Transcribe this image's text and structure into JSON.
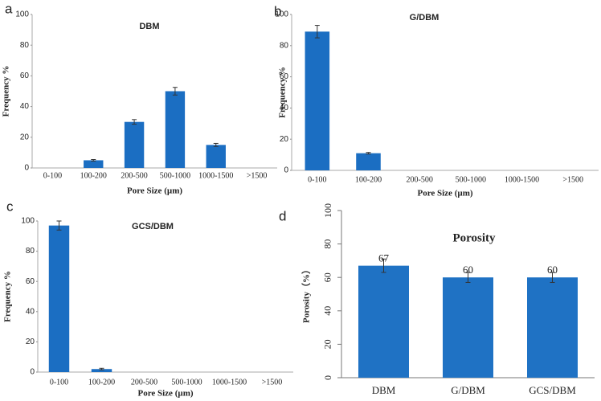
{
  "chart_data": [
    {
      "type": "bar",
      "panel": "a",
      "title": "DBM",
      "x_label": "Pore Size (µm)",
      "y_label": "Frequency %",
      "categories": [
        "0-100",
        "100-200",
        "200-500",
        "500-1000",
        "1000-1500",
        ">1500"
      ],
      "values": [
        0,
        5,
        30,
        50,
        15,
        0
      ],
      "errors": [
        null,
        0.5,
        1.5,
        2.5,
        1,
        null
      ],
      "color": "#1b6ec2",
      "ylim": [
        0,
        100
      ],
      "yticks": [
        0,
        20,
        40,
        60,
        80,
        100
      ]
    },
    {
      "type": "bar",
      "panel": "b",
      "title": "G/DBM",
      "x_label": "Pore Size (µm)",
      "y_label": "Frequency %",
      "categories": [
        "0-100",
        "100-200",
        "200-500",
        "500-1000",
        "1000-1500",
        ">1500"
      ],
      "values": [
        89,
        11,
        0,
        0,
        0,
        0
      ],
      "errors": [
        4,
        0.5,
        null,
        null,
        null,
        null
      ],
      "color": "#1b6ec2",
      "ylim": [
        0,
        100
      ],
      "yticks": [
        0,
        20,
        40,
        60,
        80,
        100
      ]
    },
    {
      "type": "bar",
      "panel": "c",
      "title": "GCS/DBM",
      "x_label": "Pore Size (µm)",
      "y_label": "Frequency %",
      "categories": [
        "0-100",
        "100-200",
        "200-500",
        "500-1000",
        "1000-1500",
        ">1500"
      ],
      "values": [
        97,
        2,
        0,
        0,
        0,
        0
      ],
      "errors": [
        3,
        0.5,
        null,
        null,
        null,
        null
      ],
      "color": "#1b6ec2",
      "ylim": [
        0,
        100
      ],
      "yticks": [
        0,
        20,
        40,
        60,
        80,
        100
      ]
    },
    {
      "type": "bar",
      "panel": "d",
      "title": "Porosity",
      "y_label": "Porosity（%）",
      "categories": [
        "DBM",
        "G/DBM",
        "GCS/DBM"
      ],
      "values": [
        67,
        60,
        60
      ],
      "errors": [
        4,
        3,
        3
      ],
      "show_value_labels": true,
      "color": "#1f72c4",
      "ylim": [
        0,
        100
      ],
      "yticks": [
        0,
        20,
        40,
        60,
        80,
        100
      ]
    }
  ]
}
